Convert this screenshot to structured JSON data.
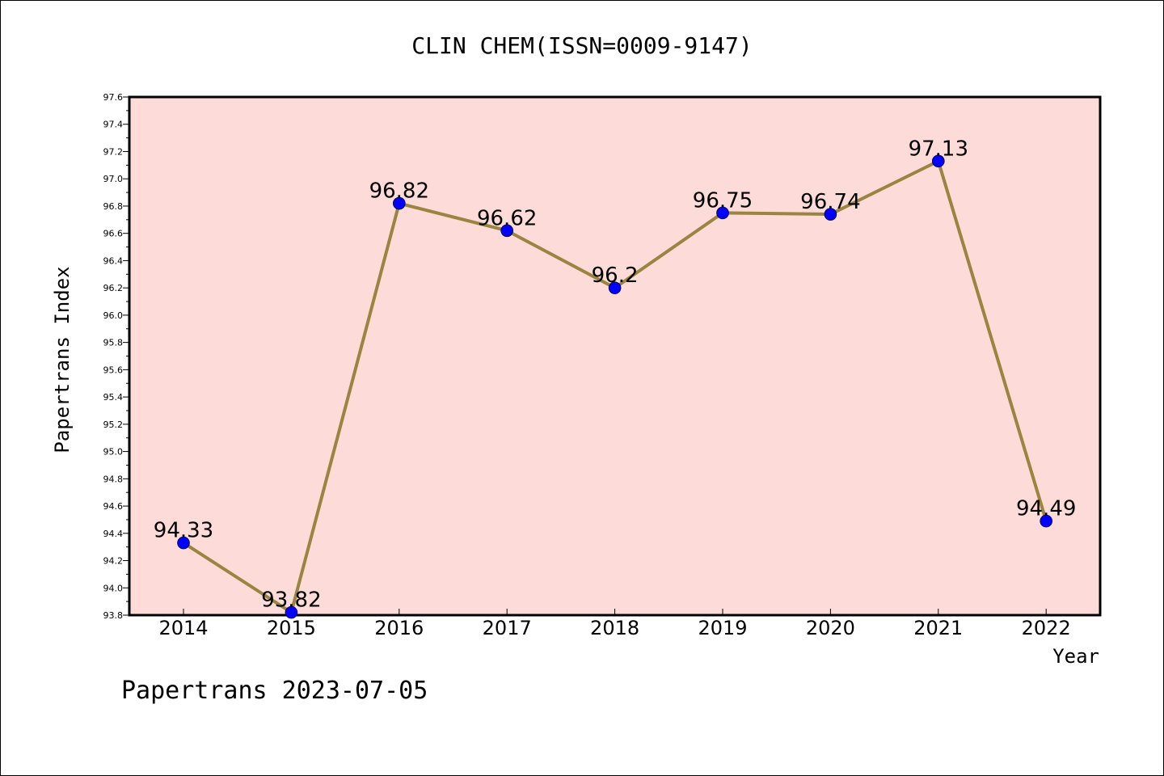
{
  "chart_data": {
    "type": "line",
    "title": "CLIN CHEM(ISSN=0009-9147)",
    "xlabel": "Year",
    "ylabel": "Papertrans Index",
    "categories": [
      "2014",
      "2015",
      "2016",
      "2017",
      "2018",
      "2019",
      "2020",
      "2021",
      "2022"
    ],
    "values": [
      94.33,
      93.82,
      96.82,
      96.62,
      96.2,
      96.75,
      96.74,
      97.13,
      94.49
    ],
    "data_labels": [
      "94.33",
      "93.82",
      "96.82",
      "96.62",
      "96.2",
      "96.75",
      "96.74",
      "97.13",
      "94.49"
    ],
    "ylim": [
      93.8,
      97.6
    ],
    "yticks": [
      "93.8",
      "94.0",
      "94.2",
      "94.4",
      "94.6",
      "94.8",
      "95.0",
      "95.2",
      "95.4",
      "95.6",
      "95.8",
      "96.0",
      "96.2",
      "96.4",
      "96.6",
      "96.8",
      "97.0",
      "97.2",
      "97.4",
      "97.6"
    ],
    "grid": false,
    "line_color": "#9a8540",
    "marker_color": "#0000ff",
    "plot_background": "#fddbd8"
  },
  "footer": "Papertrans 2023-07-05"
}
